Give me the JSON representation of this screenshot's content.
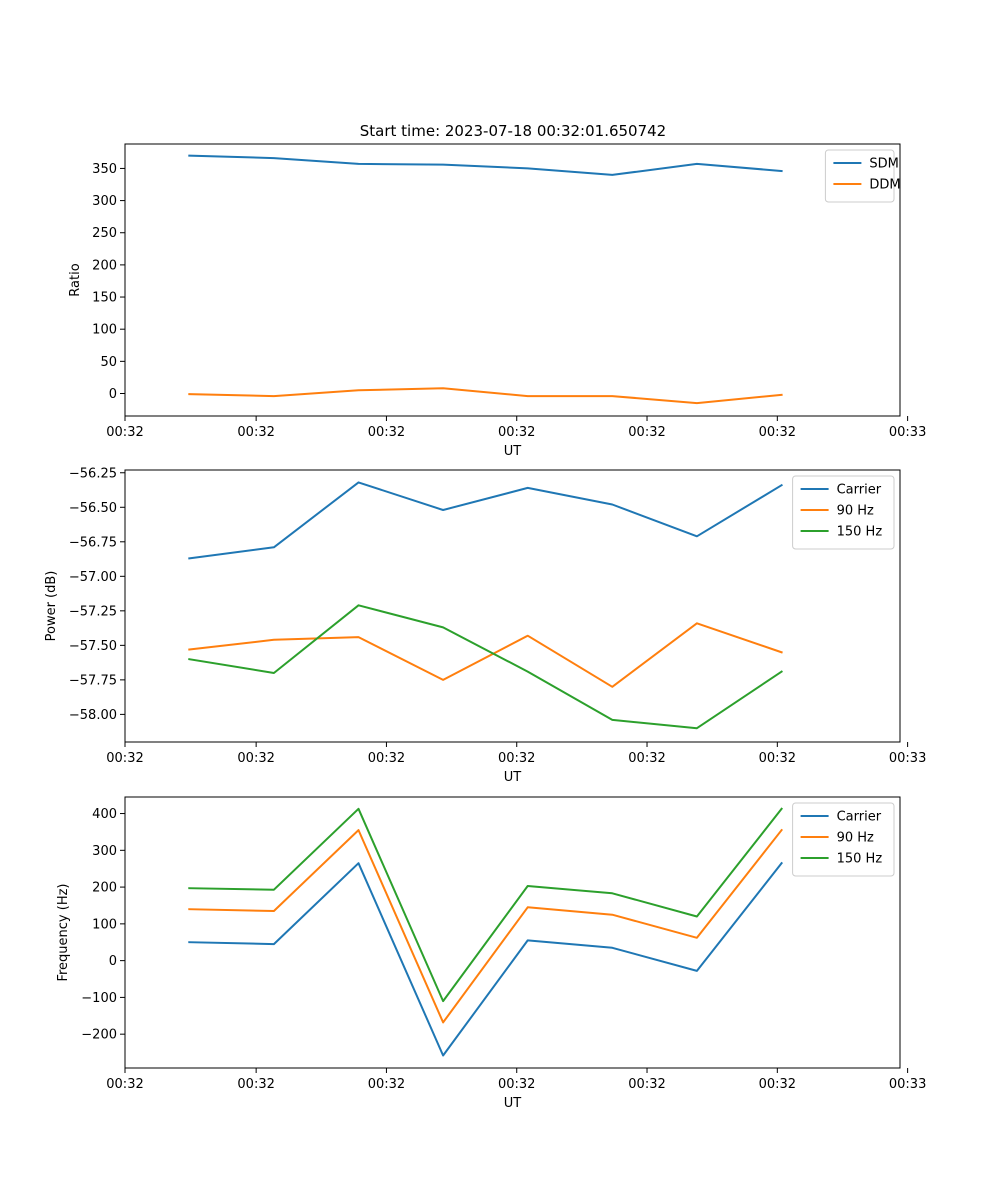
{
  "figure_title": "Start time: 2023-07-18 00:32:01.650742",
  "colors": {
    "blue": "#1f77b4",
    "orange": "#ff7f0e",
    "green": "#2ca02c"
  },
  "chart_data": [
    {
      "type": "line",
      "title": "Start time: 2023-07-18 00:32:01.650742",
      "xlabel": "UT",
      "ylabel": "Ratio",
      "x": [
        0,
        1,
        2,
        3,
        4,
        5,
        6,
        7
      ],
      "xlim": [
        -0.76,
        8.4
      ],
      "xticks": [
        {
          "x": -0.76,
          "label": "00:32"
        },
        {
          "x": 0.79,
          "label": "00:32"
        },
        {
          "x": 2.33,
          "label": "00:32"
        },
        {
          "x": 3.87,
          "label": "00:32"
        },
        {
          "x": 5.41,
          "label": "00:32"
        },
        {
          "x": 6.95,
          "label": "00:32"
        },
        {
          "x": 8.49,
          "label": "00:33"
        }
      ],
      "ylim": [
        -35,
        388
      ],
      "yticks": [
        0,
        50,
        100,
        150,
        200,
        250,
        300,
        350
      ],
      "ytick_labels": [
        "0",
        "50",
        "100",
        "150",
        "200",
        "250",
        "300",
        "350"
      ],
      "legend_position": "top-right",
      "series": [
        {
          "name": "SDM",
          "color": "#1f77b4",
          "values": [
            370,
            366,
            357,
            356,
            350,
            340,
            357,
            346
          ]
        },
        {
          "name": "DDM",
          "color": "#ff7f0e",
          "values": [
            -1,
            -4,
            5,
            8,
            -4,
            -4,
            -15,
            -2
          ]
        }
      ]
    },
    {
      "type": "line",
      "xlabel": "UT",
      "ylabel": "Power (dB)",
      "x": [
        0,
        1,
        2,
        3,
        4,
        5,
        6,
        7
      ],
      "xlim": [
        -0.76,
        8.4
      ],
      "xticks": [
        {
          "x": -0.76,
          "label": "00:32"
        },
        {
          "x": 0.79,
          "label": "00:32"
        },
        {
          "x": 2.33,
          "label": "00:32"
        },
        {
          "x": 3.87,
          "label": "00:32"
        },
        {
          "x": 5.41,
          "label": "00:32"
        },
        {
          "x": 6.95,
          "label": "00:32"
        },
        {
          "x": 8.49,
          "label": "00:33"
        }
      ],
      "ylim": [
        -58.2,
        -56.23
      ],
      "yticks": [
        -58.0,
        -57.75,
        -57.5,
        -57.25,
        -57.0,
        -56.75,
        -56.5,
        -56.25
      ],
      "ytick_labels": [
        "−58.00",
        "−57.75",
        "−57.50",
        "−57.25",
        "−57.00",
        "−56.75",
        "−56.50",
        "−56.25"
      ],
      "legend_position": "top-right",
      "series": [
        {
          "name": "Carrier",
          "color": "#1f77b4",
          "values": [
            -56.87,
            -56.79,
            -56.32,
            -56.52,
            -56.36,
            -56.48,
            -56.71,
            -56.34
          ]
        },
        {
          "name": "90 Hz",
          "color": "#ff7f0e",
          "values": [
            -57.53,
            -57.46,
            -57.44,
            -57.75,
            -57.43,
            -57.8,
            -57.34,
            -57.55
          ]
        },
        {
          "name": "150 Hz",
          "color": "#2ca02c",
          "values": [
            -57.6,
            -57.7,
            -57.21,
            -57.37,
            -57.69,
            -58.04,
            -58.1,
            -57.69
          ]
        }
      ]
    },
    {
      "type": "line",
      "xlabel": "UT",
      "ylabel": "Frequency (Hz)",
      "x": [
        0,
        1,
        2,
        3,
        4,
        5,
        6,
        7
      ],
      "xlim": [
        -0.76,
        8.4
      ],
      "xticks": [
        {
          "x": -0.76,
          "label": "00:32"
        },
        {
          "x": 0.79,
          "label": "00:32"
        },
        {
          "x": 2.33,
          "label": "00:32"
        },
        {
          "x": 3.87,
          "label": "00:32"
        },
        {
          "x": 5.41,
          "label": "00:32"
        },
        {
          "x": 6.95,
          "label": "00:32"
        },
        {
          "x": 8.49,
          "label": "00:33"
        }
      ],
      "ylim": [
        -292,
        445
      ],
      "yticks": [
        -200,
        -100,
        0,
        100,
        200,
        300,
        400
      ],
      "ytick_labels": [
        "−200",
        "−100",
        "0",
        "100",
        "200",
        "300",
        "400"
      ],
      "legend_position": "top-right",
      "series": [
        {
          "name": "Carrier",
          "color": "#1f77b4",
          "values": [
            50,
            45,
            265,
            -258,
            55,
            35,
            -28,
            265
          ]
        },
        {
          "name": "90 Hz",
          "color": "#ff7f0e",
          "values": [
            140,
            135,
            355,
            -168,
            145,
            125,
            62,
            355
          ]
        },
        {
          "name": "150 Hz",
          "color": "#2ca02c",
          "values": [
            197,
            193,
            413,
            -110,
            203,
            183,
            120,
            413
          ]
        }
      ]
    }
  ]
}
